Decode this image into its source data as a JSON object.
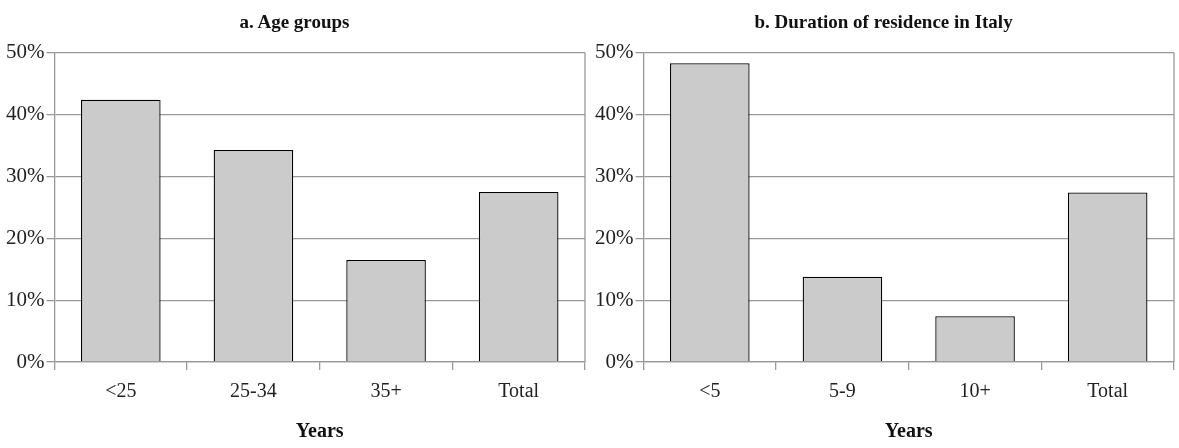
{
  "chart_data": [
    {
      "type": "bar",
      "title": "a. Age groups",
      "xlabel": "Years",
      "categories": [
        "<25",
        "25-34",
        "35+",
        "Total"
      ],
      "series": [
        {
          "color": "#cbcbcb",
          "values": [
            42.4,
            34.3,
            16.5,
            27.5
          ]
        }
      ],
      "ylim": [
        0,
        50
      ],
      "yticks": [
        {
          "value": 0,
          "label": "0%"
        },
        {
          "value": 10,
          "label": "10%"
        },
        {
          "value": 20,
          "label": "20%"
        },
        {
          "value": 30,
          "label": "30%"
        },
        {
          "value": 40,
          "label": "40%"
        },
        {
          "value": 50,
          "label": "50%"
        }
      ],
      "grid": "y",
      "legend": false
    },
    {
      "type": "bar",
      "title": "b. Duration of residence in Italy",
      "xlabel": "Years",
      "categories": [
        "<5",
        "5-9",
        "10+",
        "Total"
      ],
      "series": [
        {
          "color": "#cbcbcb",
          "values": [
            48.3,
            13.8,
            7.4,
            27.4
          ]
        }
      ],
      "ylim": [
        0,
        50
      ],
      "yticks": [
        {
          "value": 0,
          "label": "0%"
        },
        {
          "value": 10,
          "label": "10%"
        },
        {
          "value": 20,
          "label": "20%"
        },
        {
          "value": 30,
          "label": "30%"
        },
        {
          "value": 40,
          "label": "40%"
        },
        {
          "value": 50,
          "label": "50%"
        }
      ],
      "grid": "y",
      "legend": false
    }
  ]
}
